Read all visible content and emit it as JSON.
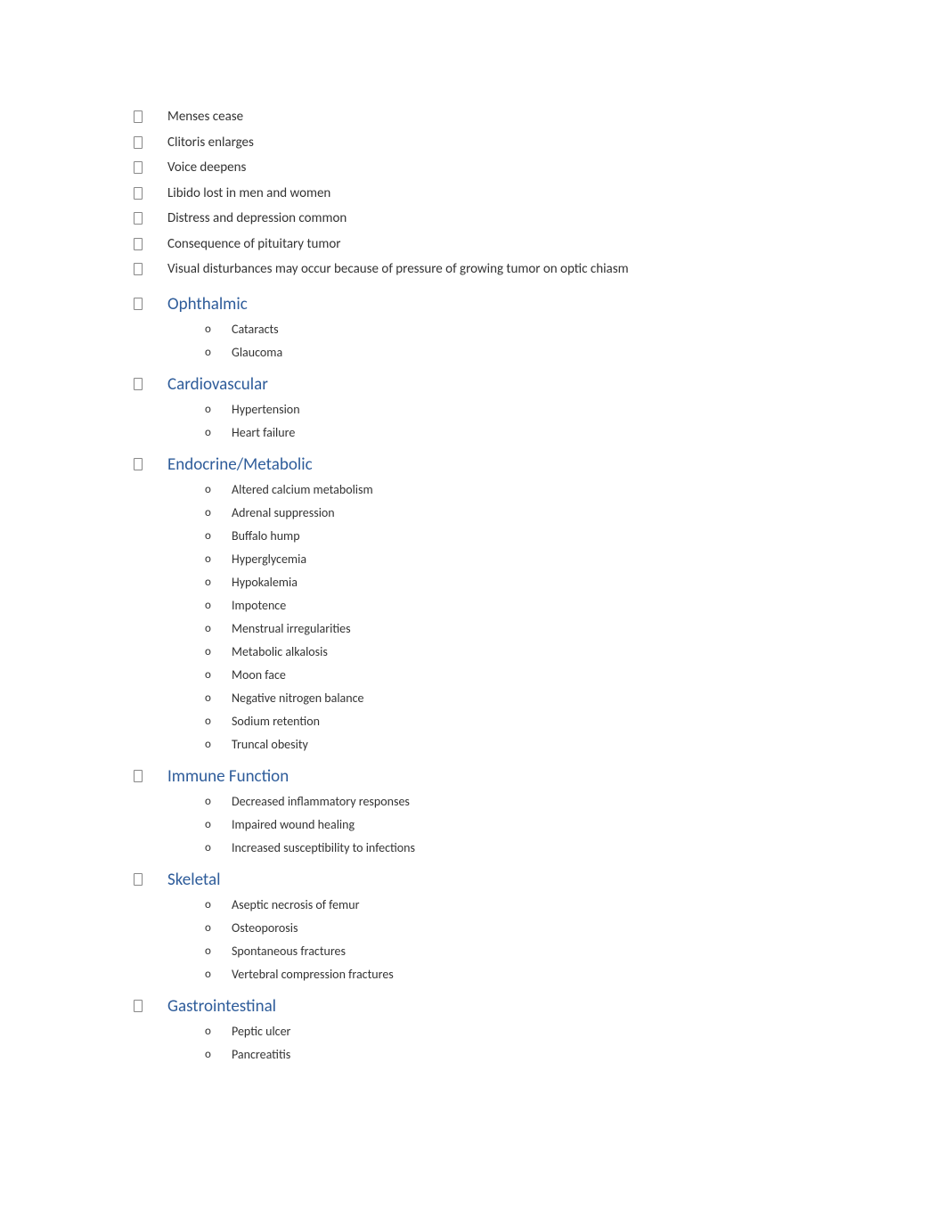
{
  "colors": {
    "heading": "#2e5c9a",
    "text": "#333333",
    "background": "#ffffff"
  },
  "fonts": {
    "body_size": 15,
    "heading_size": 19,
    "sub_size": 14
  },
  "topItems": [
    "Menses cease",
    "Clitoris enlarges",
    "Voice deepens",
    "Libido lost in men and women",
    "Distress and depression common",
    "Consequence of pituitary tumor",
    "Visual disturbances may occur because of pressure of growing tumor on optic chiasm"
  ],
  "sections": [
    {
      "title": "Ophthalmic",
      "items": [
        "Cataracts",
        "Glaucoma"
      ]
    },
    {
      "title": "Cardiovascular",
      "items": [
        "Hypertension",
        "Heart failure"
      ]
    },
    {
      "title": "Endocrine/Metabolic",
      "items": [
        "Altered calcium metabolism",
        "Adrenal suppression",
        "Buffalo hump",
        "Hyperglycemia",
        "Hypokalemia",
        "Impotence",
        "Menstrual irregularities",
        "Metabolic alkalosis",
        "Moon face",
        "Negative nitrogen balance",
        "Sodium retention",
        "Truncal obesity"
      ]
    },
    {
      "title": "Immune Function",
      "items": [
        "Decreased inflammatory responses",
        "Impaired wound healing",
        "Increased susceptibility to infections"
      ]
    },
    {
      "title": "Skeletal",
      "items": [
        "Aseptic necrosis of femur",
        "Osteoporosis",
        "Spontaneous fractures",
        "Vertebral compression fractures"
      ]
    },
    {
      "title": "Gastrointestinal",
      "items": [
        "Peptic ulcer",
        "Pancreatitis"
      ]
    }
  ]
}
